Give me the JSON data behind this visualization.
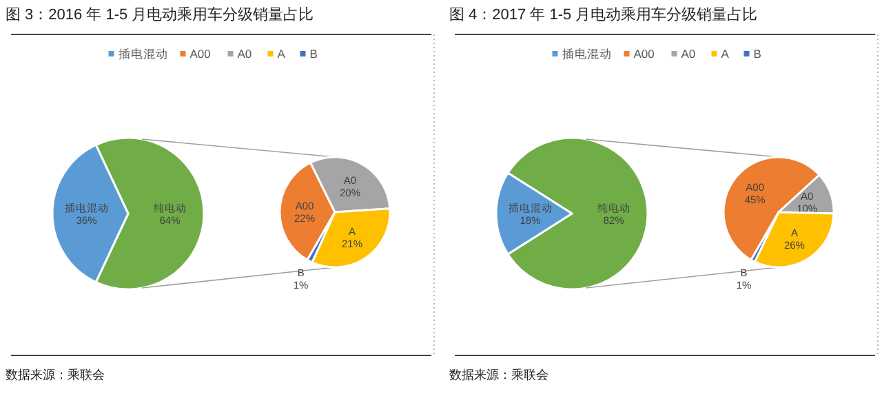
{
  "chart_data": [
    {
      "type": "pie",
      "title": "图 3：2016 年 1-5 月电动乘用车分级销量占比",
      "categories": [
        "插电混动",
        "纯电动",
        "A00",
        "A0",
        "A",
        "B"
      ],
      "colors": [
        "#5b9bd5",
        "#70ad47",
        "#ed7d31",
        "#a5a5a5",
        "#ffc000",
        "#4472c4"
      ],
      "series": [
        {
          "values": [
            36,
            64,
            null,
            null,
            null,
            null
          ],
          "value_labels": [
            "36%",
            "64%",
            null,
            null,
            null,
            null
          ]
        },
        {
          "values": [
            null,
            null,
            22,
            20,
            21,
            1
          ],
          "value_labels": [
            null,
            null,
            "22%",
            "20%",
            "21%",
            "1%"
          ]
        }
      ],
      "legend": "top",
      "annotations": [
        "数据来源：乘联会"
      ]
    },
    {
      "type": "pie",
      "title": "图 4：2017 年 1-5 月电动乘用车分级销量占比",
      "categories": [
        "插电混动",
        "纯电动",
        "A00",
        "A0",
        "A",
        "B"
      ],
      "colors": [
        "#5b9bd5",
        "#70ad47",
        "#ed7d31",
        "#a5a5a5",
        "#ffc000",
        "#4472c4"
      ],
      "series": [
        {
          "values": [
            18,
            82,
            null,
            null,
            null,
            null
          ],
          "value_labels": [
            "18%",
            "82%",
            null,
            null,
            null,
            null
          ]
        },
        {
          "values": [
            null,
            null,
            45,
            10,
            26,
            1
          ],
          "value_labels": [
            null,
            null,
            "45%",
            "10%",
            "26%",
            "1%"
          ]
        }
      ],
      "legend": "top",
      "annotations": [
        "数据来源：乘联会"
      ]
    }
  ]
}
